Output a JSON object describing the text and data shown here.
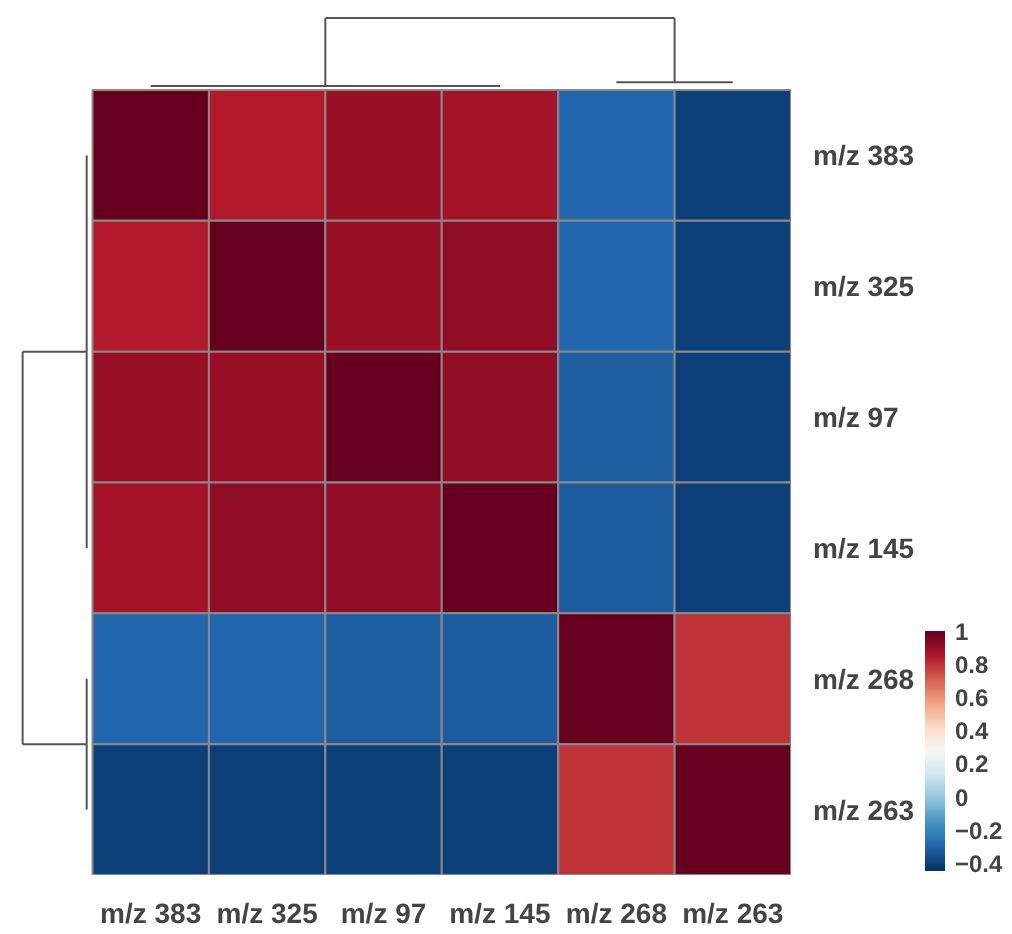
{
  "chart_data": {
    "type": "heatmap",
    "categories": [
      "m/z 383",
      "m/z 325",
      "m/z 97",
      "m/z 145",
      "m/z 268",
      "m/z 263"
    ],
    "y_categories": [
      "m/z 383",
      "m/z 325",
      "m/z 97",
      "m/z 145",
      "m/z 268",
      "m/z 263"
    ],
    "cells": [
      [
        1,
        0.85,
        0.9,
        0.88,
        -0.3,
        -0.4
      ],
      [
        0.85,
        1,
        0.9,
        0.92,
        -0.3,
        -0.4
      ],
      [
        0.9,
        0.9,
        1,
        0.92,
        -0.32,
        -0.4
      ],
      [
        0.88,
        0.92,
        0.92,
        1,
        -0.33,
        -0.4
      ],
      [
        -0.3,
        -0.3,
        -0.32,
        -0.33,
        1,
        0.8
      ],
      [
        -0.4,
        -0.4,
        -0.4,
        -0.4,
        0.8,
        1
      ]
    ],
    "clim": [
      -0.45,
      1
    ],
    "cticks": [
      -0.4,
      -0.2,
      0,
      0.2,
      0.4,
      0.6,
      0.8,
      1
    ]
  }
}
